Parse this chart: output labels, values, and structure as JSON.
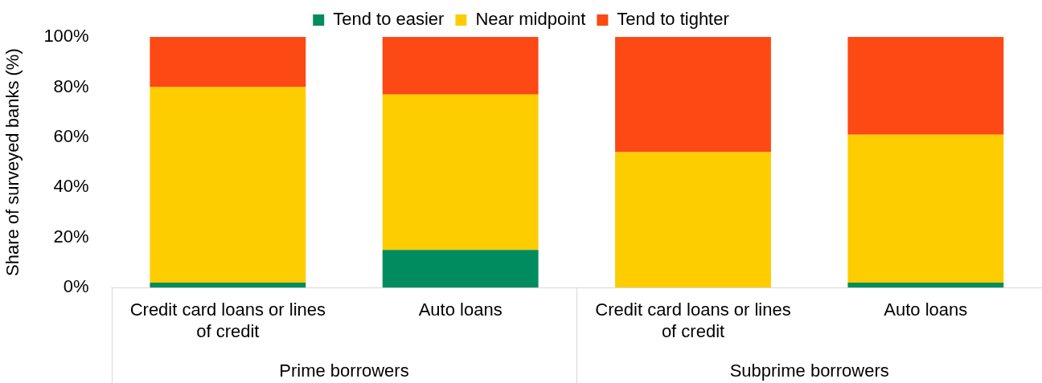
{
  "chart_data": {
    "type": "bar",
    "stacked": true,
    "ylabel": "Share of surveyed banks (%)",
    "categories": [
      "Credit card loans or lines of credit",
      "Auto loans",
      "Credit card loans or lines of credit",
      "Auto loans"
    ],
    "series": [
      {
        "name": "Tend to easier",
        "color": "#008c5f",
        "values": [
          2,
          15,
          0,
          2
        ]
      },
      {
        "name": "Near midpoint",
        "color": "#fdcd00",
        "values": [
          78,
          62,
          54,
          59
        ]
      },
      {
        "name": "Tend to tighter",
        "color": "#fd4914",
        "values": [
          20,
          23,
          46,
          39
        ]
      }
    ],
    "ylim": [
      0,
      100
    ],
    "yticks": [
      {
        "value": 0,
        "label": "0%"
      },
      {
        "value": 20,
        "label": "20%"
      },
      {
        "value": 40,
        "label": "40%"
      },
      {
        "value": 60,
        "label": "60%"
      },
      {
        "value": 80,
        "label": "80%"
      },
      {
        "value": 100,
        "label": "100%"
      }
    ],
    "annotations": [
      "Prime borrowers",
      "Subprime borrowers"
    ],
    "grid": false,
    "legend": "top"
  }
}
